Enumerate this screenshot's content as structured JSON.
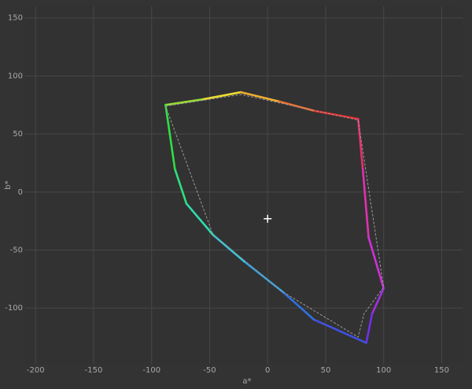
{
  "chart_data": {
    "type": "gamut",
    "x_label": "a*",
    "y_label": "b*",
    "xlim": [
      -209,
      168
    ],
    "ylim": [
      -148,
      160
    ],
    "xticks": [
      -200,
      -150,
      -100,
      -50,
      0,
      50,
      100,
      150
    ],
    "yticks": [
      -100,
      -50,
      0,
      50,
      100,
      150
    ],
    "grid": true,
    "series": [
      {
        "x": [
          -88,
          -55,
          -23,
          10,
          40,
          78,
          82,
          87,
          100,
          90,
          85,
          40,
          13,
          -20,
          -47,
          -70,
          -80,
          -88
        ],
        "values": [
          75,
          80,
          86,
          78,
          70,
          63,
          20,
          -39,
          -83,
          -105,
          -130,
          -110,
          -86,
          -60,
          -37,
          -10,
          20,
          75
        ],
        "colors": [
          "#33dd44",
          "#99dd33",
          "#eedd33",
          "#f0b030",
          "#f07030",
          "#e83030",
          "#e8306a",
          "#e030b0",
          "#d030d8",
          "#a030e0",
          "#7030e8",
          "#4050e0",
          "#3070e0",
          "#30a0e0",
          "#30c8e0",
          "#30dcb0",
          "#30e080",
          "#33dd44"
        ]
      },
      {
        "x": [
          -88,
          -23,
          78,
          100,
          83,
          78,
          13,
          -47,
          -88
        ],
        "values": [
          74,
          84,
          62,
          -82,
          -105,
          -125,
          -86,
          -37,
          74
        ],
        "color": "#9a9a9a",
        "dashed": true
      }
    ],
    "white_point": {
      "x": 0,
      "y": -23
    }
  }
}
